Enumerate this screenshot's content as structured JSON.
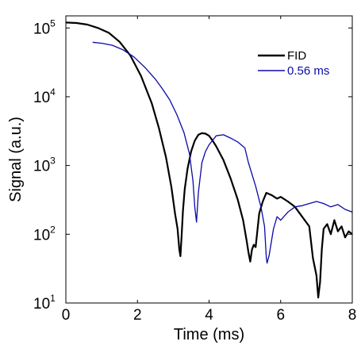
{
  "chart_data": {
    "type": "line",
    "xlabel": "Time (ms)",
    "ylabel": "Signal (a.u.)",
    "xlim": [
      0,
      8
    ],
    "ylim": [
      10,
      150000
    ],
    "yscale": "log",
    "xticks": [
      "0",
      "2",
      "4",
      "6",
      "8"
    ],
    "yticks": [
      {
        "base": "10",
        "exp": "1",
        "value": 10
      },
      {
        "base": "10",
        "exp": "2",
        "value": 100
      },
      {
        "base": "10",
        "exp": "3",
        "value": 1000
      },
      {
        "base": "10",
        "exp": "4",
        "value": 10000
      },
      {
        "base": "10",
        "exp": "5",
        "value": 100000
      }
    ],
    "grid": false,
    "legend_position": "top-right",
    "series": [
      {
        "name": "FID",
        "color": "#000000",
        "x": [
          0.0,
          0.3,
          0.6,
          0.9,
          1.2,
          1.5,
          1.8,
          2.1,
          2.4,
          2.6,
          2.8,
          2.95,
          3.05,
          3.12,
          3.17,
          3.2,
          3.23,
          3.27,
          3.32,
          3.4,
          3.5,
          3.6,
          3.7,
          3.8,
          3.9,
          4.0,
          4.1,
          4.2,
          4.4,
          4.6,
          4.8,
          4.95,
          5.05,
          5.1,
          5.15,
          5.2,
          5.25,
          5.3,
          5.4,
          5.5,
          5.6,
          5.75,
          5.9,
          6.0,
          6.2,
          6.4,
          6.6,
          6.8,
          6.9,
          7.0,
          7.05,
          7.1,
          7.15,
          7.2,
          7.3,
          7.4,
          7.5,
          7.6,
          7.7,
          7.8,
          7.9,
          8.0
        ],
        "y": [
          120000,
          118000,
          112000,
          100000,
          85000,
          63000,
          40000,
          20000,
          8000,
          3500,
          1300,
          480,
          200,
          120,
          60,
          48,
          90,
          220,
          450,
          900,
          1600,
          2300,
          2800,
          2950,
          2900,
          2700,
          2300,
          1900,
          1200,
          650,
          320,
          160,
          80,
          55,
          40,
          60,
          70,
          65,
          200,
          300,
          400,
          370,
          330,
          350,
          300,
          250,
          180,
          130,
          45,
          25,
          12,
          20,
          60,
          120,
          140,
          100,
          160,
          110,
          130,
          90,
          110,
          100
        ]
      },
      {
        "name": "0.56 ms",
        "color": "#0a0aa8",
        "x": [
          0.75,
          1.0,
          1.3,
          1.6,
          1.9,
          2.2,
          2.5,
          2.7,
          2.9,
          3.1,
          3.3,
          3.45,
          3.55,
          3.6,
          3.65,
          3.7,
          3.8,
          3.9,
          4.0,
          4.2,
          4.4,
          4.6,
          4.8,
          5.0,
          5.1,
          5.3,
          5.45,
          5.55,
          5.6,
          5.62,
          5.68,
          5.8,
          5.9,
          6.0,
          6.2,
          6.4,
          6.6,
          6.8,
          7.0,
          7.2,
          7.4,
          7.6,
          7.8,
          8.0
        ],
        "y": [
          62000,
          60000,
          56000,
          48000,
          38000,
          27000,
          18000,
          13000,
          9000,
          5500,
          3000,
          1500,
          600,
          250,
          150,
          400,
          1100,
          1600,
          2000,
          2700,
          2800,
          2500,
          2200,
          1800,
          1100,
          500,
          250,
          130,
          45,
          38,
          50,
          120,
          180,
          160,
          210,
          250,
          260,
          280,
          300,
          280,
          250,
          270,
          230,
          210
        ]
      }
    ]
  }
}
